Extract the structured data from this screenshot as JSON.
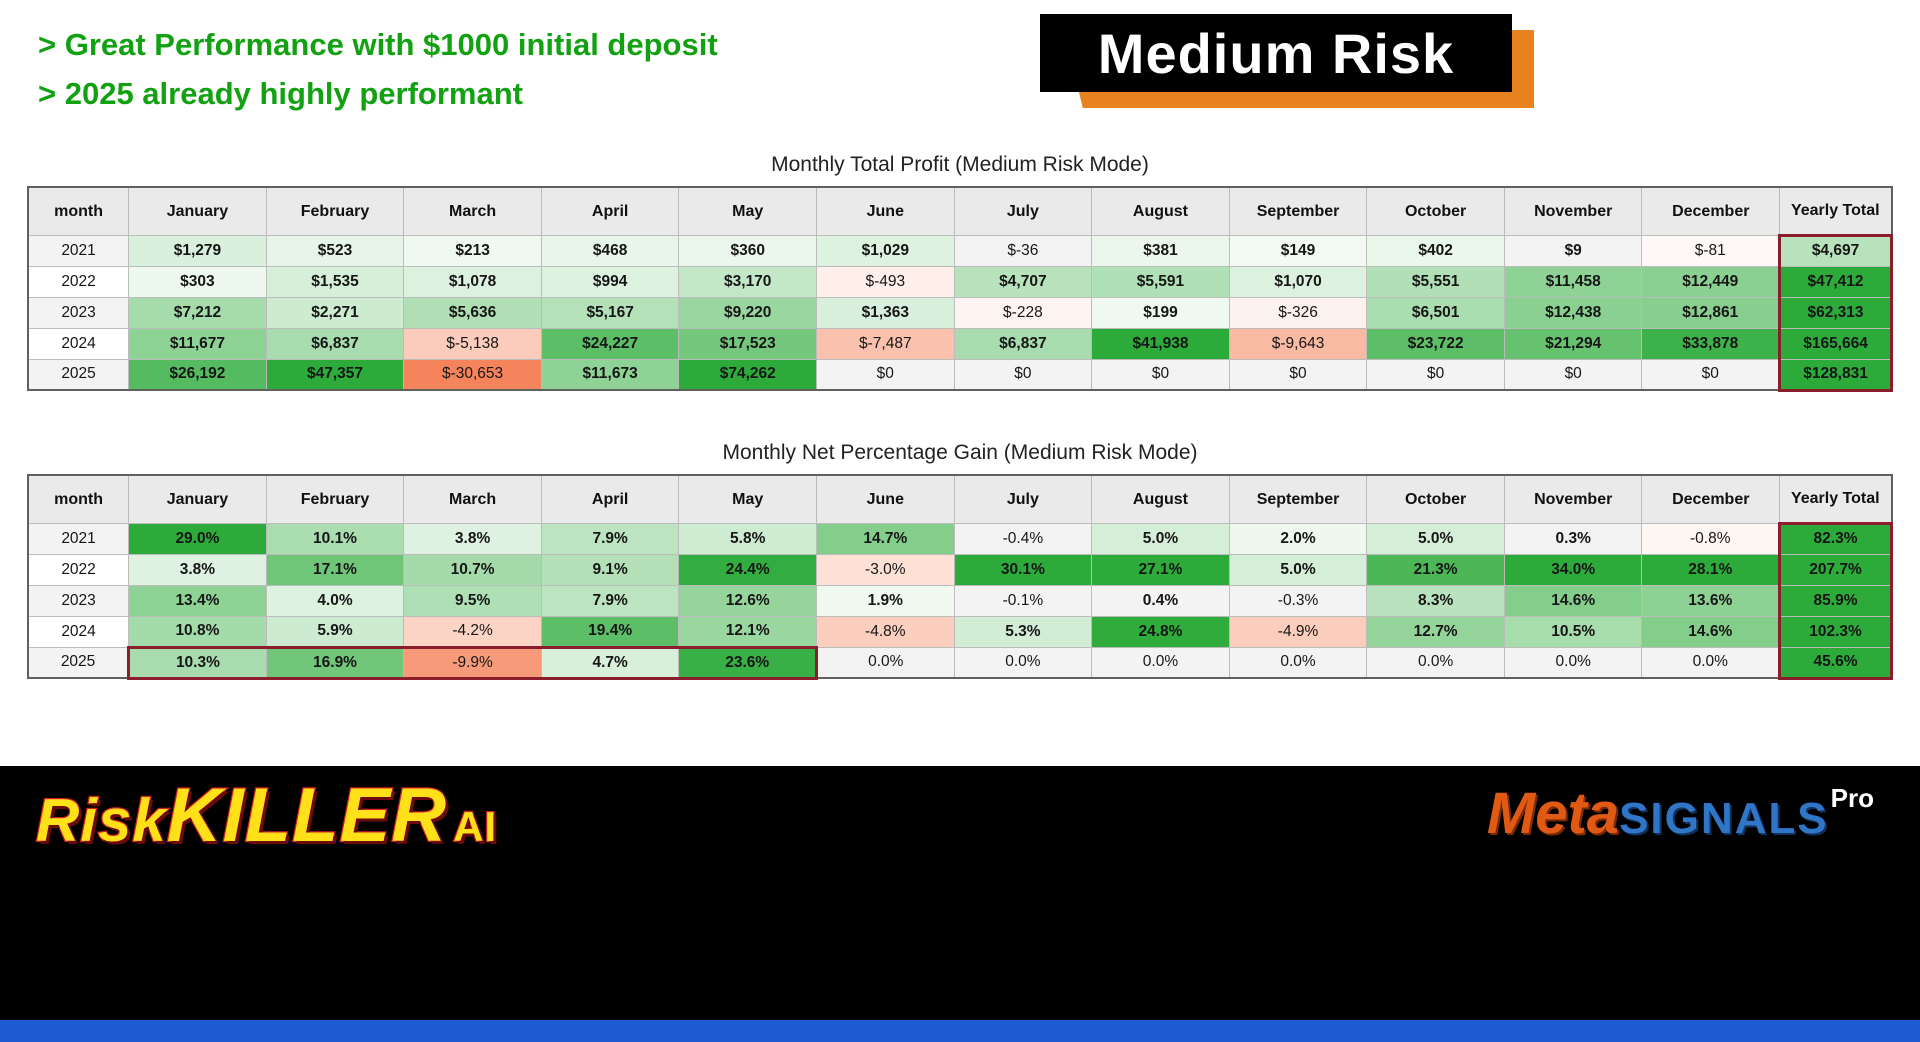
{
  "header": {
    "bullet1": "> Great Performance with $1000 initial deposit",
    "bullet2": "> 2025 already highly performant",
    "badge_label": "Medium Risk"
  },
  "footer": {
    "brand_risk": "Risk",
    "brand_killer": "KILLER",
    "brand_ai": "AI",
    "brand_meta": "Meta",
    "brand_signals": "SIGNALS",
    "brand_pro": "Pro"
  },
  "colors": {
    "accent_green": "#11a111",
    "badge_orange": "#e8821e",
    "heat_positive": "#2dab3a",
    "heat_negative": "#f5845c",
    "highlight_border": "#8a1e2d",
    "footer_blue": "#1c5bd2",
    "brand_yellow": "#ffe019",
    "brand_red": "#d41f26",
    "meta_orange": "#e05a14",
    "signals_blue": "#3076c8"
  },
  "chart_data": [
    {
      "type": "table",
      "title": "Monthly Total Profit (Medium Risk Mode)",
      "unit": "usd",
      "columns": [
        "month",
        "January",
        "February",
        "March",
        "April",
        "May",
        "June",
        "July",
        "August",
        "September",
        "October",
        "November",
        "December",
        "Yearly Total"
      ],
      "rows": [
        {
          "year": "2021",
          "display": [
            "$1,279",
            "$523",
            "$213",
            "$468",
            "$360",
            "$1,029",
            "$-36",
            "$381",
            "$149",
            "$402",
            "$9",
            "$-81",
            "$4,697"
          ],
          "values": [
            1279,
            523,
            213,
            468,
            360,
            1029,
            -36,
            381,
            149,
            402,
            9,
            -81,
            4697
          ]
        },
        {
          "year": "2022",
          "display": [
            "$303",
            "$1,535",
            "$1,078",
            "$994",
            "$3,170",
            "$-493",
            "$4,707",
            "$5,591",
            "$1,070",
            "$5,551",
            "$11,458",
            "$12,449",
            "$47,412"
          ],
          "values": [
            303,
            1535,
            1078,
            994,
            3170,
            -493,
            4707,
            5591,
            1070,
            5551,
            11458,
            12449,
            47412
          ]
        },
        {
          "year": "2023",
          "display": [
            "$7,212",
            "$2,271",
            "$5,636",
            "$5,167",
            "$9,220",
            "$1,363",
            "$-228",
            "$199",
            "$-326",
            "$6,501",
            "$12,438",
            "$12,861",
            "$62,313"
          ],
          "values": [
            7212,
            2271,
            5636,
            5167,
            9220,
            1363,
            -228,
            199,
            -326,
            6501,
            12438,
            12861,
            62313
          ]
        },
        {
          "year": "2024",
          "display": [
            "$11,677",
            "$6,837",
            "$-5,138",
            "$24,227",
            "$17,523",
            "$-7,487",
            "$6,837",
            "$41,938",
            "$-9,643",
            "$23,722",
            "$21,294",
            "$33,878",
            "$165,664"
          ],
          "values": [
            11677,
            6837,
            -5138,
            24227,
            17523,
            -7487,
            6837,
            41938,
            -9643,
            23722,
            21294,
            33878,
            165664
          ]
        },
        {
          "year": "2025",
          "display": [
            "$26,192",
            "$47,357",
            "$-30,653",
            "$11,673",
            "$74,262",
            "$0",
            "$0",
            "$0",
            "$0",
            "$0",
            "$0",
            "$0",
            "$128,831"
          ],
          "values": [
            26192,
            47357,
            -30653,
            11673,
            74262,
            0,
            0,
            0,
            0,
            0,
            0,
            0,
            128831
          ]
        }
      ],
      "highlights": [
        {
          "kind": "column",
          "col": 13
        }
      ]
    },
    {
      "type": "table",
      "title": "Monthly Net Percentage Gain (Medium Risk Mode)",
      "unit": "percent",
      "columns": [
        "month",
        "January",
        "February",
        "March",
        "April",
        "May",
        "June",
        "July",
        "August",
        "September",
        "October",
        "November",
        "December",
        "Yearly Total"
      ],
      "rows": [
        {
          "year": "2021",
          "display": [
            "29.0%",
            "10.1%",
            "3.8%",
            "7.9%",
            "5.8%",
            "14.7%",
            "-0.4%",
            "5.0%",
            "2.0%",
            "5.0%",
            "0.3%",
            "-0.8%",
            "82.3%"
          ],
          "values": [
            29.0,
            10.1,
            3.8,
            7.9,
            5.8,
            14.7,
            -0.4,
            5.0,
            2.0,
            5.0,
            0.3,
            -0.8,
            82.3
          ]
        },
        {
          "year": "2022",
          "display": [
            "3.8%",
            "17.1%",
            "10.7%",
            "9.1%",
            "24.4%",
            "-3.0%",
            "30.1%",
            "27.1%",
            "5.0%",
            "21.3%",
            "34.0%",
            "28.1%",
            "207.7%"
          ],
          "values": [
            3.8,
            17.1,
            10.7,
            9.1,
            24.4,
            -3.0,
            30.1,
            27.1,
            5.0,
            21.3,
            34.0,
            28.1,
            207.7
          ]
        },
        {
          "year": "2023",
          "display": [
            "13.4%",
            "4.0%",
            "9.5%",
            "7.9%",
            "12.6%",
            "1.9%",
            "-0.1%",
            "0.4%",
            "-0.3%",
            "8.3%",
            "14.6%",
            "13.6%",
            "85.9%"
          ],
          "values": [
            13.4,
            4.0,
            9.5,
            7.9,
            12.6,
            1.9,
            -0.1,
            0.4,
            -0.3,
            8.3,
            14.6,
            13.6,
            85.9
          ]
        },
        {
          "year": "2024",
          "display": [
            "10.8%",
            "5.9%",
            "-4.2%",
            "19.4%",
            "12.1%",
            "-4.8%",
            "5.3%",
            "24.8%",
            "-4.9%",
            "12.7%",
            "10.5%",
            "14.6%",
            "102.3%"
          ],
          "values": [
            10.8,
            5.9,
            -4.2,
            19.4,
            12.1,
            -4.8,
            5.3,
            24.8,
            -4.9,
            12.7,
            10.5,
            14.6,
            102.3
          ]
        },
        {
          "year": "2025",
          "display": [
            "10.3%",
            "16.9%",
            "-9.9%",
            "4.7%",
            "23.6%",
            "0.0%",
            "0.0%",
            "0.0%",
            "0.0%",
            "0.0%",
            "0.0%",
            "0.0%",
            "45.6%"
          ],
          "values": [
            10.3,
            16.9,
            -9.9,
            4.7,
            23.6,
            0,
            0,
            0,
            0,
            0,
            0,
            0,
            45.6
          ]
        }
      ],
      "highlights": [
        {
          "kind": "column",
          "col": 13
        },
        {
          "kind": "range",
          "row": 4,
          "from": 1,
          "to": 5
        }
      ]
    }
  ]
}
